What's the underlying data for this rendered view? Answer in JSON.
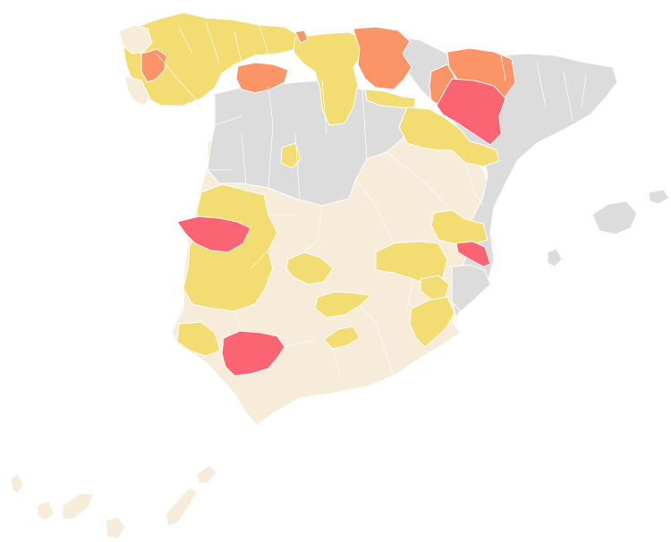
{
  "map": {
    "palette": {
      "none": "#dcdcdc",
      "light": "#f6ecd9",
      "medium": "#f3dc72",
      "high": "#fb9466",
      "very_high": "#fb6472",
      "border": "#ffffff"
    },
    "layers": [
      {
        "name": "gray-region",
        "level": "none"
      },
      {
        "name": "cream-region",
        "level": "light"
      },
      {
        "name": "yellow-region",
        "level": "medium"
      },
      {
        "name": "orange-region",
        "level": "high"
      },
      {
        "name": "red-region",
        "level": "very_high"
      }
    ],
    "islands": {
      "balearic": "none",
      "canary": "light"
    }
  }
}
